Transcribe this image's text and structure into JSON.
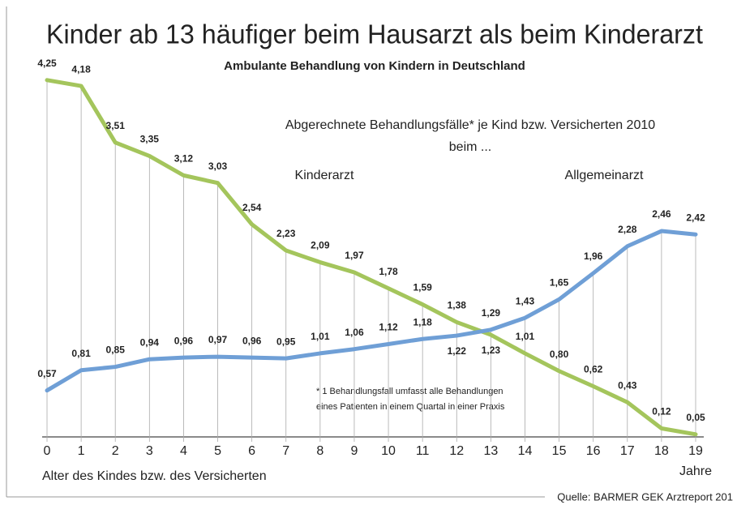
{
  "chart_data": {
    "type": "line",
    "title": "Kinder ab 13 häufiger beim Hausarzt als beim Kinderarzt",
    "subtitle": "Ambulante Behandlung von Kindern in Deutschland",
    "annotations": [
      "Abgerechnete Behandlungsfälle* je Kind bzw. Versicherten 2010",
      "beim ...",
      "Kinderarzt",
      "Allgemeinarzt",
      "* 1 Behandlungsfall umfasst alle Behandlungen",
      "eines Patienten in einem Quartal in einer Praxis"
    ],
    "x_label": "Alter des Kindes bzw. des Versicherten",
    "x_unit": "Jahre",
    "source": "Quelle: BARMER GEK Arztreport 201",
    "x": [
      0,
      1,
      2,
      3,
      4,
      5,
      6,
      7,
      8,
      9,
      10,
      11,
      12,
      13,
      14,
      15,
      16,
      17,
      18,
      19
    ],
    "xlim": [
      0,
      19
    ],
    "xticks": [
      0,
      1,
      2,
      3,
      4,
      5,
      6,
      7,
      8,
      9,
      10,
      11,
      12,
      13,
      14,
      15,
      16,
      17,
      18,
      19
    ],
    "ylim": [
      0,
      4.3
    ],
    "series": [
      {
        "name": "Kinderarzt",
        "color": "#a4c55c",
        "values": [
          4.25,
          4.18,
          3.51,
          3.35,
          3.12,
          3.03,
          2.54,
          2.23,
          2.09,
          1.97,
          1.78,
          1.59,
          1.38,
          1.23,
          1.01,
          0.8,
          0.62,
          0.43,
          0.12,
          0.05
        ],
        "value_labels": [
          "4,25",
          "4,18",
          "3,51",
          "3,35",
          "3,12",
          "3,03",
          "2,54",
          "2,23",
          "2,09",
          "1,97",
          "1,78",
          "1,59",
          "1,38",
          "1,23",
          "1,01",
          "0,80",
          "0,62",
          "0,43",
          "0,12",
          "0,05"
        ]
      },
      {
        "name": "Allgemeinarzt",
        "color": "#6f9fd6",
        "values": [
          0.57,
          0.81,
          0.85,
          0.94,
          0.96,
          0.97,
          0.96,
          0.95,
          1.01,
          1.06,
          1.12,
          1.18,
          1.22,
          1.29,
          1.43,
          1.65,
          1.96,
          2.28,
          2.46,
          2.42
        ],
        "value_labels": [
          "0,57",
          "0,81",
          "0,85",
          "0,94",
          "0,96",
          "0,97",
          "0,96",
          "0,95",
          "1,01",
          "1,06",
          "1,12",
          "1,18",
          "1,22",
          "1,29",
          "1,43",
          "1,65",
          "1,96",
          "2,28",
          "2,46",
          "2,42"
        ]
      }
    ]
  }
}
